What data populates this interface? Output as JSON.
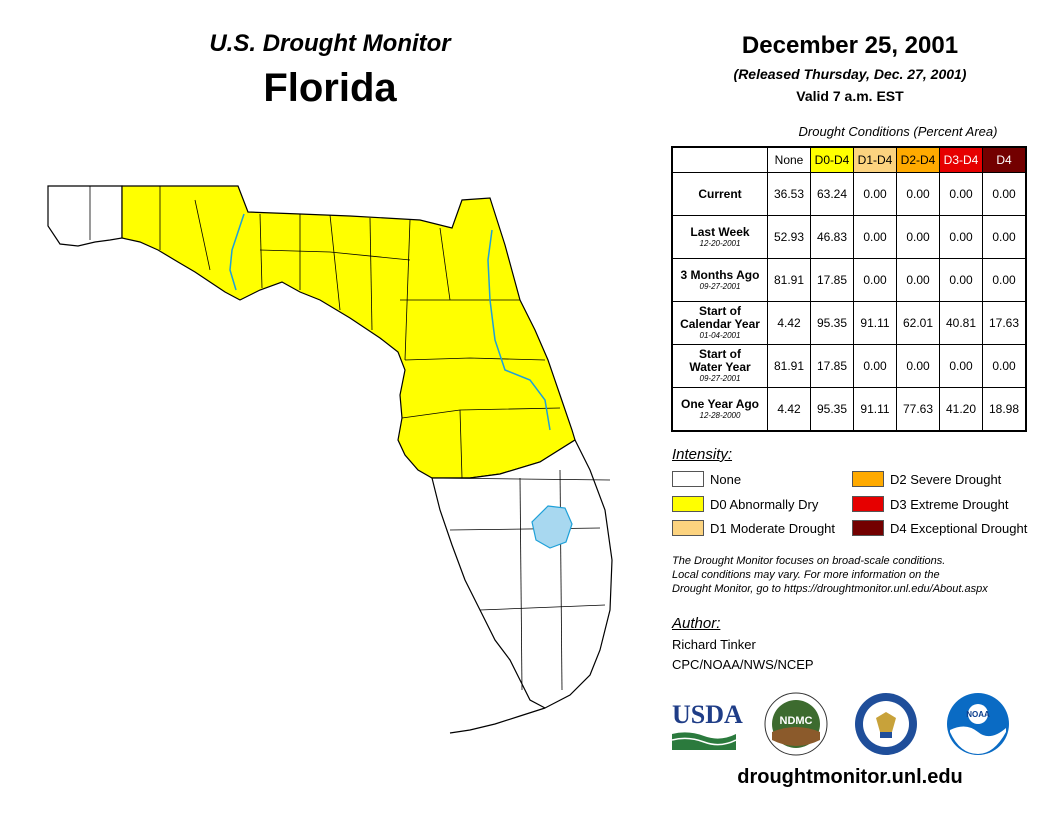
{
  "header": {
    "monitor": "U.S. Drought Monitor",
    "state": "Florida",
    "date": "December 25, 2001",
    "released": "(Released Thursday, Dec. 27, 2001)",
    "valid": "Valid 7 a.m. EST"
  },
  "table": {
    "title": "Drought Conditions (Percent Area)",
    "columns": [
      "None",
      "D0-D4",
      "D1-D4",
      "D2-D4",
      "D3-D4",
      "D4"
    ],
    "rows": [
      {
        "label": [
          "Current"
        ],
        "date": "",
        "values": [
          "36.53",
          "63.24",
          "0.00",
          "0.00",
          "0.00",
          "0.00"
        ]
      },
      {
        "label": [
          "Last Week"
        ],
        "date": "12-20-2001",
        "values": [
          "52.93",
          "46.83",
          "0.00",
          "0.00",
          "0.00",
          "0.00"
        ]
      },
      {
        "label": [
          "3 Months Ago"
        ],
        "date": "09-27-2001",
        "values": [
          "81.91",
          "17.85",
          "0.00",
          "0.00",
          "0.00",
          "0.00"
        ]
      },
      {
        "label": [
          "Start of",
          "Calendar Year"
        ],
        "date": "01-04-2001",
        "values": [
          "4.42",
          "95.35",
          "91.11",
          "62.01",
          "40.81",
          "17.63"
        ]
      },
      {
        "label": [
          "Start of",
          "Water Year"
        ],
        "date": "09-27-2001",
        "values": [
          "81.91",
          "17.85",
          "0.00",
          "0.00",
          "0.00",
          "0.00"
        ]
      },
      {
        "label": [
          "One Year Ago"
        ],
        "date": "12-28-2000",
        "values": [
          "4.42",
          "95.35",
          "91.11",
          "77.63",
          "41.20",
          "18.98"
        ]
      }
    ]
  },
  "legend": {
    "title": "Intensity:",
    "items": [
      {
        "label": "None",
        "color": "#ffffff"
      },
      {
        "label": "D0 Abnormally Dry",
        "color": "#ffff00"
      },
      {
        "label": "D1 Moderate Drought",
        "color": "#fcd37f"
      },
      {
        "label": "D2 Severe Drought",
        "color": "#ffaa00"
      },
      {
        "label": "D3 Extreme Drought",
        "color": "#e60000"
      },
      {
        "label": "D4 Exceptional Drought",
        "color": "#730000"
      }
    ]
  },
  "note": {
    "line1": "The Drought Monitor focuses on broad-scale conditions.",
    "line2": "Local conditions may vary. For more information on the",
    "line3": "Drought Monitor, go to https://droughtmonitor.unl.edu/About.aspx"
  },
  "author": {
    "title": "Author:",
    "name": "Richard Tinker",
    "org": "CPC/NOAA/NWS/NCEP"
  },
  "logos": {
    "usda": "USDA",
    "ndmc": "NDMC",
    "noaa": "NOAA"
  },
  "footer_url": "droughtmonitor.unl.edu",
  "map_colors": {
    "d0": "#ffff00",
    "none": "#ffffff",
    "water": "#a8d8f0",
    "river": "#1ea0d8"
  }
}
